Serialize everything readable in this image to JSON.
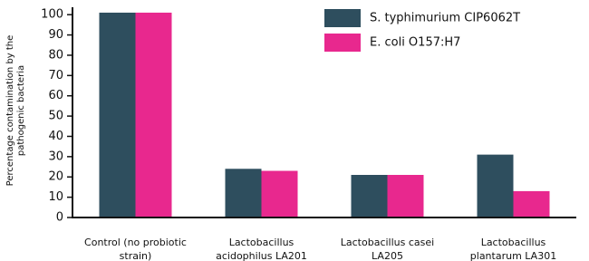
{
  "chart_data": {
    "type": "bar",
    "y_label": "Percentage contamination by the pathogenic bacteria",
    "categories": [
      "Control (no probiotic strain)",
      "Lactobacillus acidophilus LA201",
      "Lactobacillus casei LA205",
      "Lactobacillus plantarum LA301"
    ],
    "series": [
      {
        "name": "S. typhimurium CIP6062T",
        "color": "#2e4e5e",
        "values": [
          101,
          24,
          21,
          31
        ]
      },
      {
        "name": "E. coli O157:H7",
        "color": "#e8288e",
        "values": [
          101,
          23,
          21,
          13
        ]
      }
    ],
    "ylim": [
      0,
      105
    ],
    "yticks": [
      0,
      10,
      20,
      30,
      40,
      50,
      60,
      70,
      80,
      90,
      100
    ],
    "grid": false,
    "legend": "top-right"
  }
}
